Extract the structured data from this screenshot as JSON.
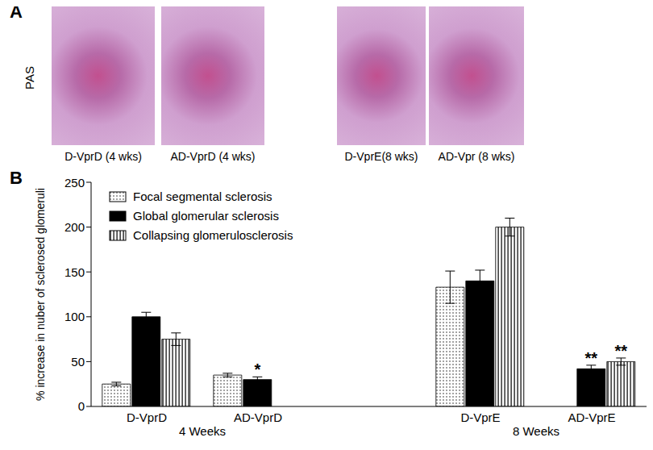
{
  "panel_labels": [
    "A",
    "B"
  ],
  "panel_a": {
    "stain_label": "PAS",
    "captions": [
      "D-VprD (4 wks)",
      "AD-VprD (4 wks)",
      "D-VprE(8 wks)",
      "AD-Vpr (8 wks)"
    ]
  },
  "chart_data": {
    "type": "bar",
    "categories": [
      "D-VprD",
      "AD-VprD",
      null,
      "D-VprE",
      "AD-VprE"
    ],
    "groups": [
      {
        "label": "4 Weeks",
        "categories": [
          "D-VprD",
          "AD-VprD"
        ]
      },
      {
        "label": "8 Weeks",
        "categories": [
          "D-VprE",
          "AD-VprE"
        ]
      }
    ],
    "y_label": "% increase in nuber of sclerosed glomeruli",
    "ylim": [
      0,
      250
    ],
    "yticks": [
      0,
      50,
      100,
      150,
      200,
      250
    ],
    "legend": "upper left",
    "series": [
      {
        "name": "Focal segmental sclerosis",
        "color": "#ffffff",
        "values": [
          25,
          35,
          null,
          133,
          null
        ],
        "errors": [
          2,
          2,
          null,
          18,
          null
        ]
      },
      {
        "name": "Global glomerular sclerosis",
        "color": "#000000",
        "values": [
          100,
          30,
          null,
          140,
          42
        ],
        "errors": [
          5,
          3,
          null,
          12,
          4
        ]
      },
      {
        "name": "Collapsing glomerulosclerosis",
        "color": "#ffffff",
        "values": [
          75,
          null,
          null,
          200,
          50
        ],
        "errors": [
          7,
          null,
          null,
          10,
          4
        ]
      }
    ],
    "annotations": [
      {
        "category": "AD-VprD",
        "series": "Global glomerular sclerosis",
        "text": "*"
      },
      {
        "category": "AD-VprE",
        "series": "Global glomerular sclerosis",
        "text": "**"
      },
      {
        "category": "AD-VprE",
        "series": "Collapsing glomerulosclerosis",
        "text": "**"
      }
    ]
  }
}
